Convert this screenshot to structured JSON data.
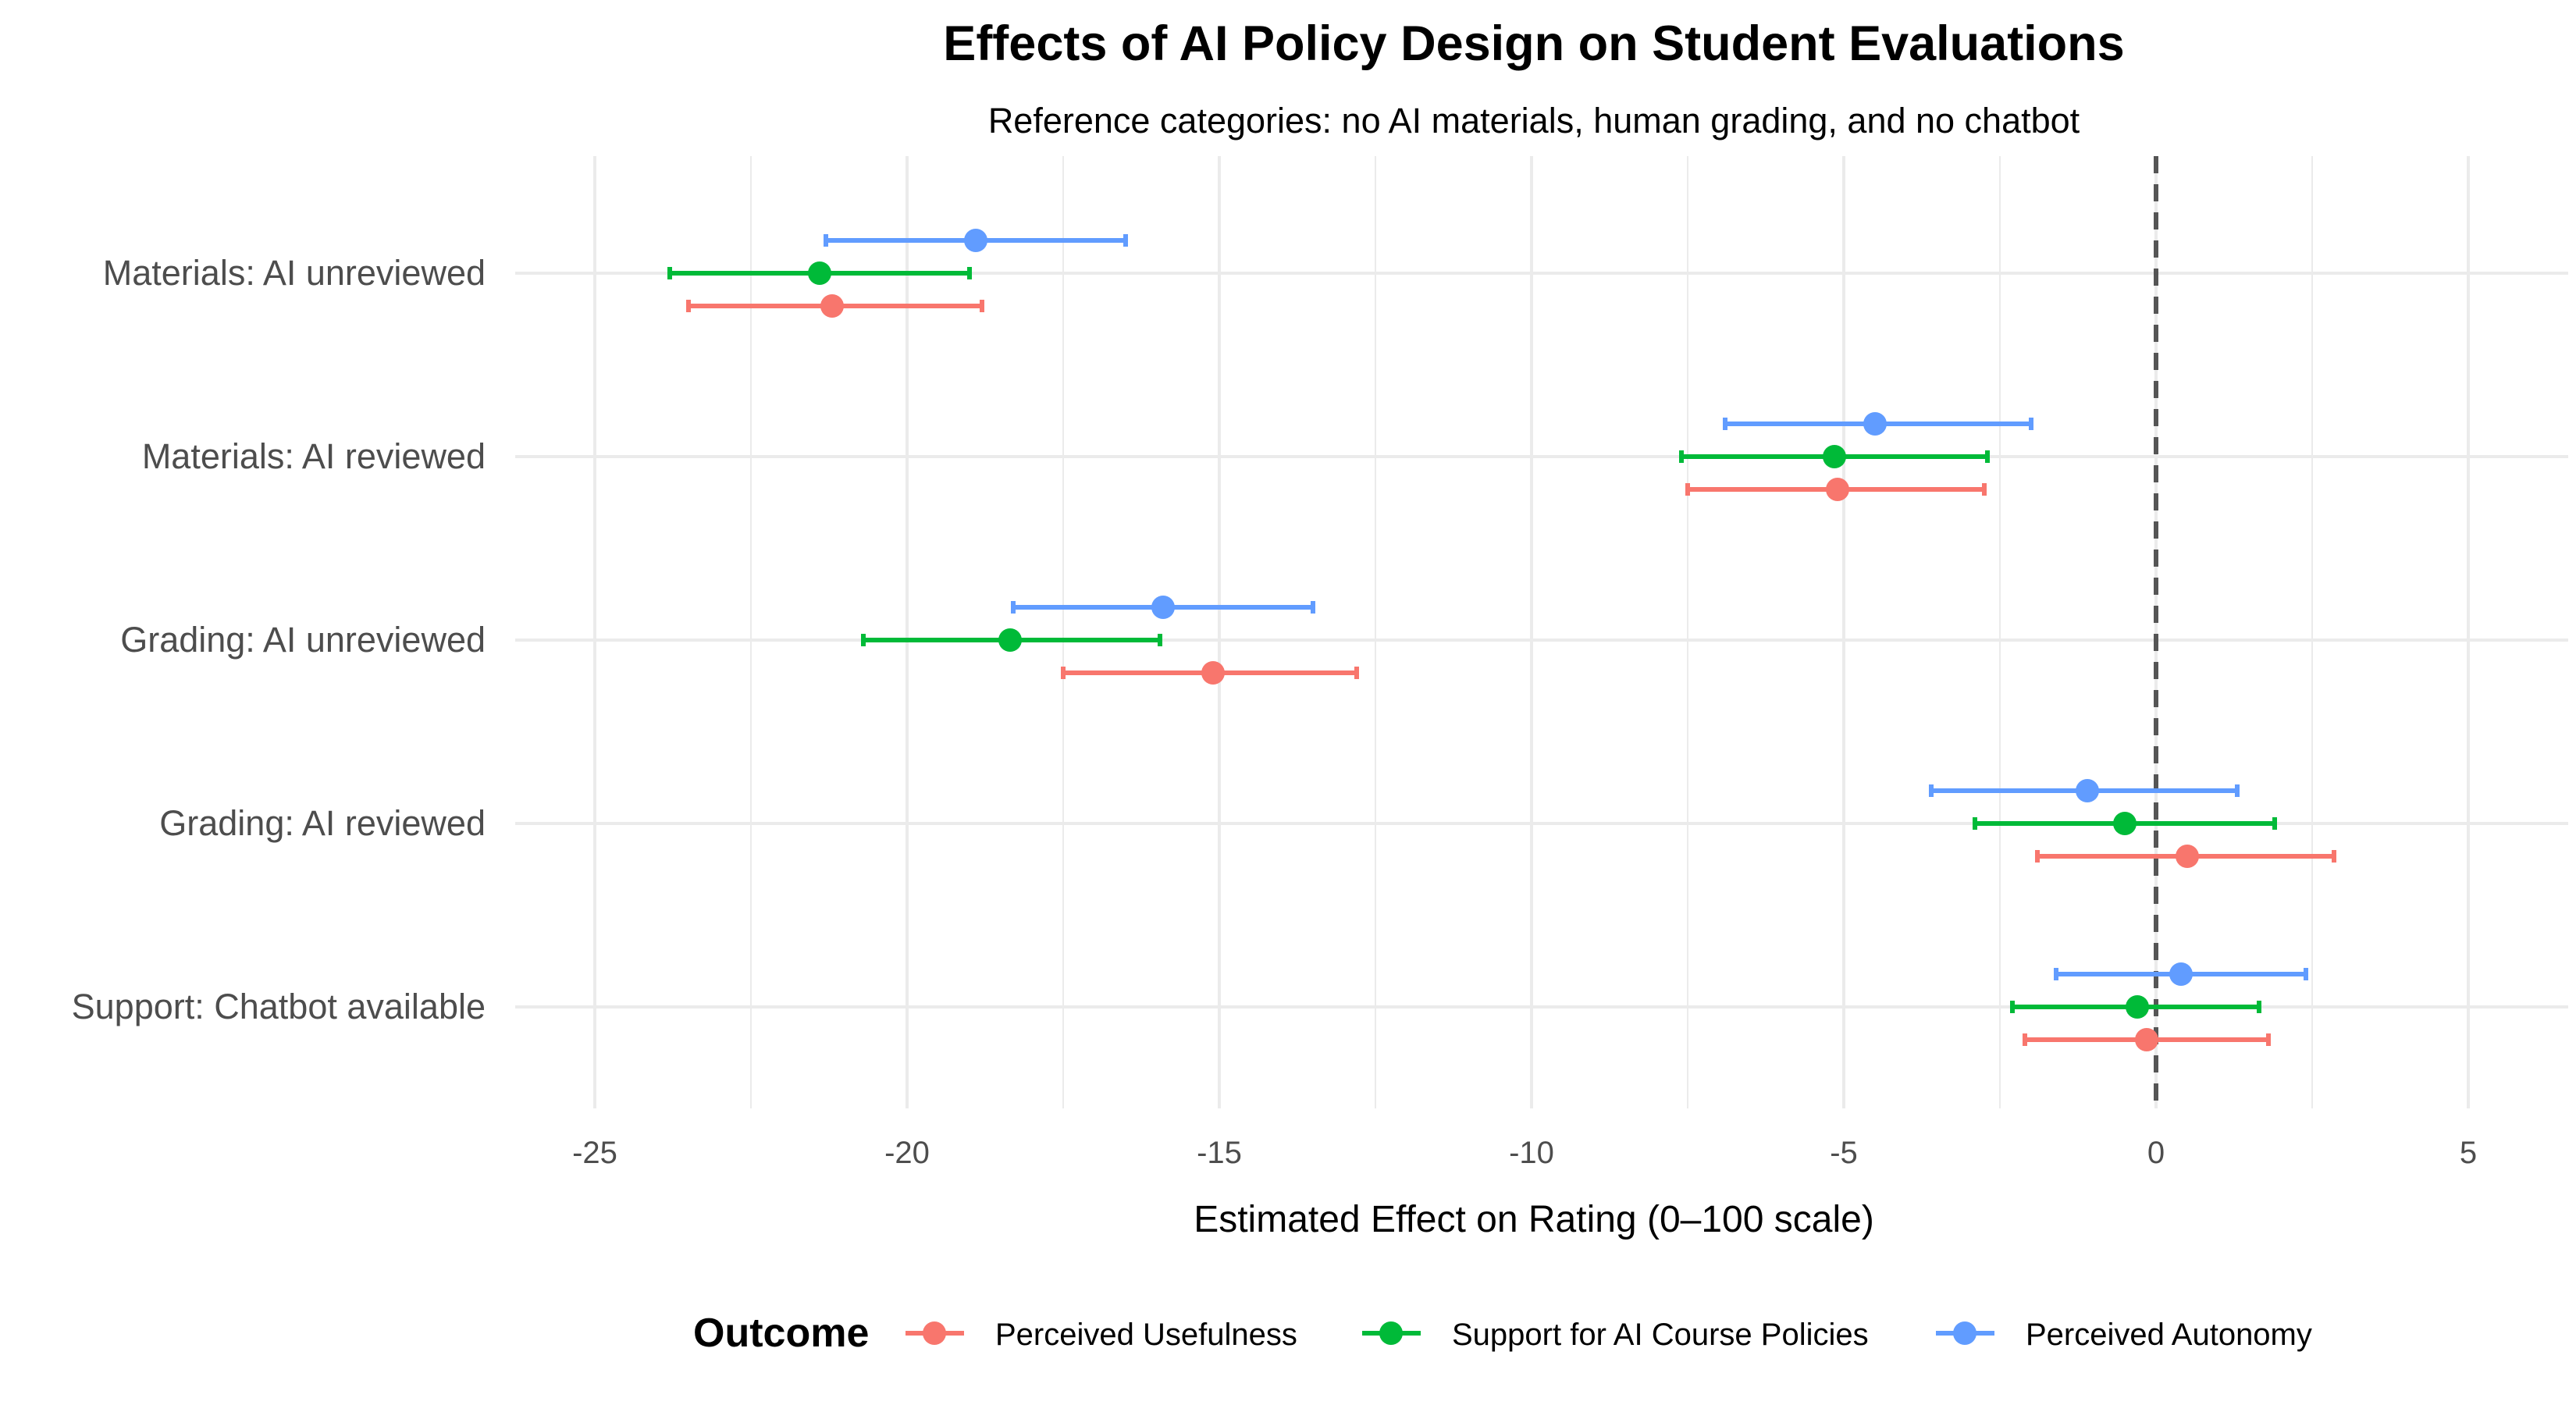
{
  "chart_data": {
    "type": "scatter",
    "style": "dot-and-whisker (point estimates with confidence intervals)",
    "title": "Effects of AI Policy Design on Student Evaluations",
    "subtitle": "Reference categories: no AI materials, human grading, and no chatbot",
    "xlabel": "Estimated Effect on Rating (0–100 scale)",
    "ylabel": "",
    "xlim": [
      -28.5,
      6.9
    ],
    "xticks": [
      -25,
      -20,
      -15,
      -10,
      -5,
      0,
      5
    ],
    "xtick_labels": [
      "-25",
      "-20",
      "-15",
      "-10",
      "-5",
      "0",
      "5"
    ],
    "reference_line": {
      "x": 0,
      "style": "dashed"
    },
    "grid": true,
    "categories": [
      "Materials: AI unreviewed",
      "Materials: AI reviewed",
      "Grading: AI unreviewed",
      "Grading: AI reviewed",
      "Support: Chatbot available"
    ],
    "legend": {
      "title": "Outcome",
      "position": "bottom"
    },
    "series": [
      {
        "name": "Perceived Usefulness",
        "color": "#f8766d",
        "estimates": [
          -21.2,
          -5.1,
          -15.1,
          0.5,
          -0.15
        ],
        "ci_low": [
          -23.5,
          -7.5,
          -17.5,
          -1.9,
          -2.1
        ],
        "ci_high": [
          -18.8,
          -2.75,
          -12.8,
          2.85,
          1.8
        ]
      },
      {
        "name": "Support for AI Course Policies",
        "color": "#00ba38",
        "estimates": [
          -21.4,
          -5.15,
          -18.35,
          -0.5,
          -0.3
        ],
        "ci_low": [
          -23.8,
          -7.6,
          -20.7,
          -2.9,
          -2.3
        ],
        "ci_high": [
          -19.0,
          -2.7,
          -15.95,
          1.9,
          1.65
        ]
      },
      {
        "name": "Perceived Autonomy",
        "color": "#619cff",
        "estimates": [
          -18.9,
          -4.5,
          -15.9,
          -1.1,
          0.4
        ],
        "ci_low": [
          -21.3,
          -6.9,
          -18.3,
          -3.6,
          -1.6
        ],
        "ci_high": [
          -16.5,
          -2.0,
          -13.5,
          1.3,
          2.4
        ]
      }
    ]
  }
}
